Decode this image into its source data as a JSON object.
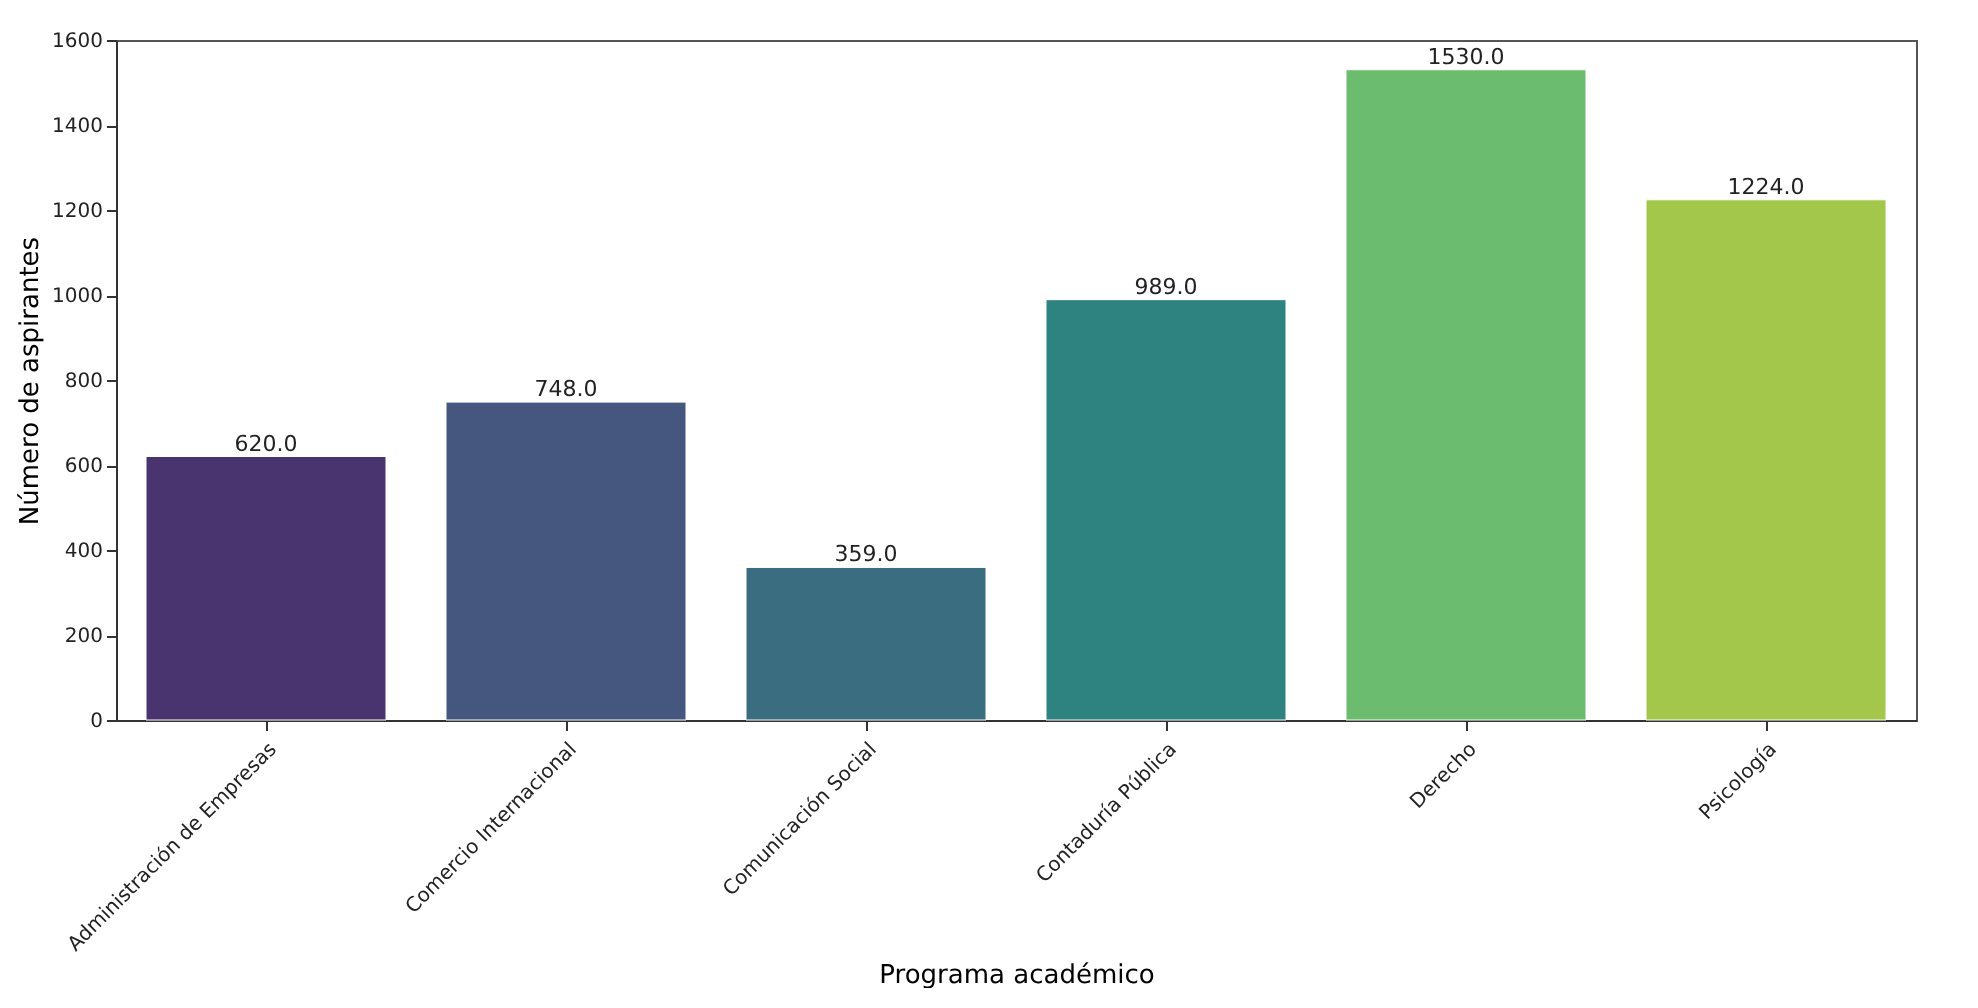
{
  "chart_data": {
    "type": "bar",
    "xlabel": "Programa académico",
    "ylabel": "Número de aspirantes",
    "categories": [
      "Administración de Empresas",
      "Comercio Internacional",
      "Comunicación Social",
      "Contaduría Pública",
      "Derecho",
      "Psicología"
    ],
    "values": [
      620,
      748,
      359,
      989,
      1530,
      1224
    ],
    "colors": [
      "#4a3470",
      "#45577f",
      "#3a6d80",
      "#2e8280",
      "#6bbc6e",
      "#a3c74a"
    ],
    "value_labels": [
      "620.0",
      "748.0",
      "359.0",
      "989.0",
      "1530.0",
      "1224.0"
    ],
    "ylim": [
      0,
      1600
    ],
    "yticks": [
      0,
      200,
      400,
      600,
      800,
      1000,
      1200,
      1400,
      1600
    ],
    "grid": false
  }
}
